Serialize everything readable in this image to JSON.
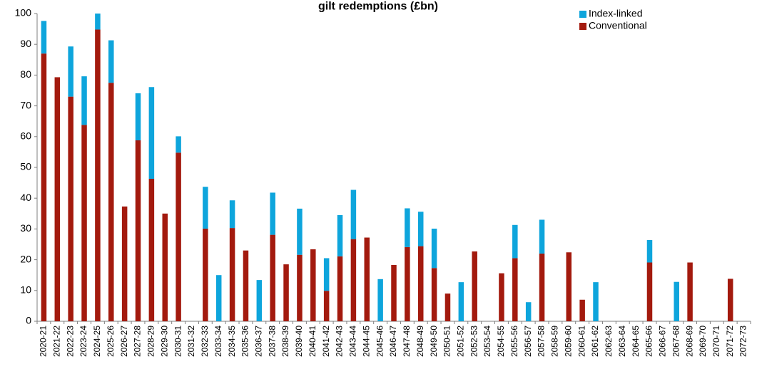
{
  "chart_data": {
    "type": "bar",
    "stacked": true,
    "title": "gilt redemptions (£bn)",
    "ylim": [
      0,
      100
    ],
    "yticks": [
      0,
      10,
      20,
      30,
      40,
      50,
      60,
      70,
      80,
      90,
      100
    ],
    "legend_position": "top-right",
    "categories": [
      "2020-21",
      "2021-22",
      "2022-23",
      "2023-24",
      "2024-25",
      "2025-26",
      "2026-27",
      "2027-28",
      "2028-29",
      "2029-30",
      "2030-31",
      "2031-32",
      "2032-33",
      "2033-34",
      "2034-35",
      "2035-36",
      "2036-37",
      "2037-38",
      "2038-39",
      "2039-40",
      "2040-41",
      "2041-42",
      "2042-43",
      "2043-44",
      "2044-45",
      "2045-46",
      "2046-47",
      "2047-48",
      "2048-49",
      "2049-50",
      "2050-51",
      "2051-52",
      "2052-53",
      "2053-54",
      "2054-55",
      "2055-56",
      "2056-57",
      "2057-58",
      "2058-59",
      "2059-60",
      "2060-61",
      "2061-62",
      "2062-63",
      "2063-64",
      "2064-65",
      "2065-66",
      "2066-67",
      "2067-68",
      "2068-69",
      "2069-70",
      "2070-71",
      "2071-72",
      "2072-73"
    ],
    "series": [
      {
        "name": "Conventional",
        "color": "#a31a0e",
        "values": [
          87,
          79.3,
          73,
          63.8,
          94.8,
          77.5,
          37.3,
          58.8,
          46.3,
          35,
          54.8,
          0,
          30.1,
          0,
          30.3,
          23,
          0,
          28.1,
          18.5,
          21.6,
          23.4,
          9.9,
          21.1,
          26.7,
          27.2,
          0,
          18.3,
          24.1,
          24.4,
          17.3,
          9,
          0,
          22.7,
          0,
          15.6,
          20.5,
          0,
          22,
          0,
          22.4,
          7,
          0,
          0,
          0,
          0,
          19.1,
          0,
          0,
          19.1,
          0,
          0,
          13.8,
          0
        ]
      },
      {
        "name": "Index-linked",
        "color": "#0ea5dc",
        "values": [
          10.6,
          0,
          16.3,
          15.8,
          5.2,
          13.8,
          0,
          15.3,
          29.8,
          0,
          5.3,
          0,
          13.6,
          15,
          9,
          0,
          13.4,
          13.7,
          0,
          15,
          0,
          10.6,
          13.4,
          16,
          0,
          13.7,
          0,
          12.6,
          11.2,
          12.8,
          0,
          12.7,
          0,
          0,
          0,
          10.8,
          6.2,
          11,
          0,
          0,
          0,
          12.7,
          0,
          0,
          0,
          7.3,
          0,
          12.8,
          0,
          0,
          0,
          0,
          0
        ]
      }
    ]
  }
}
